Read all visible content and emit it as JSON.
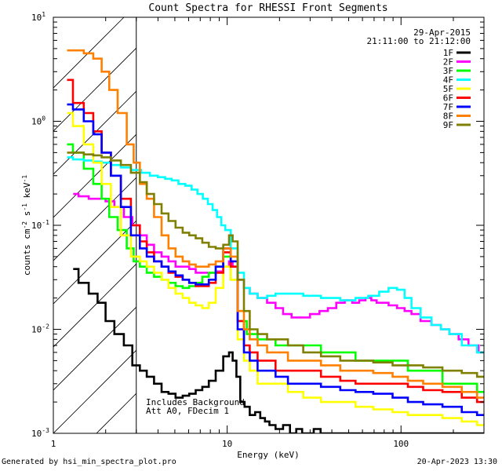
{
  "chart_data": {
    "type": "line",
    "title": "Count Spectra for RHESSI Front Segments",
    "date": "29-Apr-2015",
    "time_range": "21:11:00 to 21:12:00",
    "xlabel": "Energy (keV)",
    "ylabel_parts": [
      "counts cm",
      "-2",
      " s",
      "-1",
      " keV",
      "-1"
    ],
    "xscale": "log",
    "yscale": "log",
    "xlim": [
      1,
      300
    ],
    "ylim": [
      0.001,
      10
    ],
    "x_ticks": [
      {
        "v": 1,
        "label": "1"
      },
      {
        "v": 10,
        "label": "10"
      },
      {
        "v": 100,
        "label": "100"
      }
    ],
    "y_ticks": [
      {
        "v": 0.001,
        "base": "10",
        "exp": "-3"
      },
      {
        "v": 0.01,
        "base": "10",
        "exp": "-2"
      },
      {
        "v": 0.1,
        "base": "10",
        "exp": "-1"
      },
      {
        "v": 1,
        "base": "10",
        "exp": "0"
      },
      {
        "v": 10,
        "base": "10",
        "exp": "1"
      }
    ],
    "hatched_region_keV": [
      1,
      3
    ],
    "annotations": [
      "Includes Background",
      "Att A0, FDecim 1"
    ],
    "legend_position": "top-right",
    "series": [
      {
        "name": "1F",
        "color": "#000000",
        "x": [
          1.3,
          1.5,
          1.7,
          1.9,
          2.1,
          2.4,
          2.7,
          3.0,
          3.3,
          3.6,
          4.0,
          4.4,
          4.8,
          5.3,
          5.8,
          6.3,
          6.9,
          7.5,
          8.2,
          9.0,
          10.0,
          10.5,
          11.0,
          11.6,
          12.2,
          13,
          14,
          15,
          16,
          17,
          18,
          20,
          22,
          24,
          26,
          28,
          30,
          33,
          36,
          40,
          45,
          50,
          55,
          60,
          70,
          80,
          90,
          100,
          120,
          140,
          160,
          180,
          200,
          230,
          260,
          300
        ],
        "y": [
          0.038,
          0.028,
          0.022,
          0.018,
          0.012,
          0.009,
          0.007,
          0.0045,
          0.004,
          0.0035,
          0.003,
          0.0025,
          0.0024,
          0.0022,
          0.0023,
          0.0024,
          0.0026,
          0.0028,
          0.0032,
          0.004,
          0.0055,
          0.006,
          0.005,
          0.0035,
          0.002,
          0.0018,
          0.0015,
          0.0016,
          0.0014,
          0.0013,
          0.0012,
          0.0011,
          0.0012,
          0.001,
          0.0011,
          0.001,
          0.001,
          0.0011,
          0.001,
          0.001,
          0.001,
          0.001,
          0.001,
          0.001,
          0.001,
          0.001,
          0.001,
          0.001,
          0.001,
          0.001,
          0.001,
          0.001,
          0.001,
          0.001,
          0.001,
          0.001
        ]
      },
      {
        "name": "2F",
        "color": "#ff00ff",
        "x": [
          1.3,
          1.5,
          1.7,
          1.9,
          2.1,
          2.4,
          2.7,
          3.0,
          3.3,
          3.6,
          4.0,
          4.4,
          4.8,
          5.3,
          5.8,
          6.3,
          6.9,
          7.5,
          8.2,
          9.0,
          10.0,
          10.5,
          11.0,
          12,
          13,
          14,
          16,
          18,
          20,
          22,
          25,
          28,
          32,
          36,
          40,
          45,
          50,
          55,
          60,
          65,
          70,
          75,
          80,
          90,
          100,
          110,
          120,
          140,
          160,
          180,
          200,
          230,
          260,
          300
        ],
        "y": [
          0.2,
          0.19,
          0.18,
          0.18,
          0.17,
          0.15,
          0.12,
          0.1,
          0.08,
          0.065,
          0.055,
          0.05,
          0.045,
          0.04,
          0.04,
          0.038,
          0.035,
          0.035,
          0.035,
          0.036,
          0.04,
          0.045,
          0.04,
          0.03,
          0.025,
          0.022,
          0.02,
          0.018,
          0.016,
          0.014,
          0.013,
          0.013,
          0.014,
          0.015,
          0.016,
          0.018,
          0.019,
          0.018,
          0.019,
          0.02,
          0.019,
          0.018,
          0.018,
          0.017,
          0.016,
          0.015,
          0.014,
          0.012,
          0.011,
          0.01,
          0.009,
          0.008,
          0.007,
          0.006
        ]
      },
      {
        "name": "3F",
        "color": "#00ff00",
        "x": [
          1.2,
          1.4,
          1.6,
          1.8,
          2.0,
          2.2,
          2.5,
          2.8,
          3.0,
          3.3,
          3.6,
          4.0,
          4.4,
          4.8,
          5.3,
          5.8,
          6.3,
          6.9,
          7.5,
          8.2,
          9.0,
          10.0,
          11,
          12,
          14,
          16,
          18,
          20,
          25,
          30,
          40,
          50,
          60,
          80,
          100,
          120,
          150,
          200,
          250,
          300
        ],
        "y": [
          0.6,
          0.5,
          0.35,
          0.25,
          0.18,
          0.12,
          0.09,
          0.06,
          0.045,
          0.04,
          0.035,
          0.032,
          0.03,
          0.028,
          0.026,
          0.025,
          0.026,
          0.028,
          0.032,
          0.035,
          0.04,
          0.05,
          0.03,
          0.012,
          0.009,
          0.008,
          0.008,
          0.007,
          0.007,
          0.007,
          0.006,
          0.006,
          0.005,
          0.005,
          0.005,
          0.004,
          0.004,
          0.003,
          0.003,
          0.0025
        ]
      },
      {
        "name": "4F",
        "color": "#00ffff",
        "x": [
          1.2,
          1.4,
          1.6,
          1.8,
          2.0,
          2.3,
          2.6,
          3.0,
          3.4,
          3.8,
          4.2,
          4.6,
          5.0,
          5.5,
          6.0,
          6.5,
          7.0,
          7.5,
          8.0,
          8.5,
          9.0,
          9.5,
          10,
          11,
          12,
          13,
          14,
          16,
          18,
          20,
          25,
          30,
          40,
          50,
          60,
          70,
          80,
          90,
          100,
          110,
          120,
          140,
          160,
          180,
          200,
          250,
          300
        ],
        "y": [
          0.45,
          0.43,
          0.42,
          0.41,
          0.4,
          0.38,
          0.36,
          0.34,
          0.32,
          0.3,
          0.29,
          0.28,
          0.27,
          0.25,
          0.24,
          0.22,
          0.2,
          0.18,
          0.16,
          0.14,
          0.12,
          0.1,
          0.09,
          0.06,
          0.035,
          0.025,
          0.022,
          0.02,
          0.021,
          0.022,
          0.022,
          0.021,
          0.02,
          0.019,
          0.02,
          0.021,
          0.023,
          0.025,
          0.024,
          0.02,
          0.016,
          0.013,
          0.011,
          0.01,
          0.009,
          0.007,
          0.006
        ]
      },
      {
        "name": "5F",
        "color": "#ffff00",
        "x": [
          1.2,
          1.4,
          1.6,
          1.8,
          2.0,
          2.3,
          2.6,
          3.0,
          3.3,
          3.6,
          4.0,
          4.4,
          4.8,
          5.3,
          5.8,
          6.3,
          6.9,
          7.5,
          8.2,
          9.0,
          10.0,
          11,
          12,
          13,
          14,
          16,
          18,
          20,
          25,
          30,
          40,
          50,
          60,
          80,
          100,
          120,
          150,
          200,
          250,
          300
        ],
        "y": [
          1.2,
          0.9,
          0.6,
          0.4,
          0.25,
          0.15,
          0.08,
          0.05,
          0.045,
          0.04,
          0.035,
          0.03,
          0.025,
          0.022,
          0.02,
          0.018,
          0.017,
          0.016,
          0.018,
          0.025,
          0.04,
          0.03,
          0.008,
          0.005,
          0.004,
          0.003,
          0.003,
          0.003,
          0.0025,
          0.0022,
          0.002,
          0.002,
          0.0018,
          0.0017,
          0.0016,
          0.0015,
          0.0015,
          0.0014,
          0.0013,
          0.0012
        ]
      },
      {
        "name": "6F",
        "color": "#ff0000",
        "x": [
          1.2,
          1.4,
          1.6,
          1.8,
          2.0,
          2.3,
          2.6,
          3.0,
          3.3,
          3.6,
          4.0,
          4.4,
          4.8,
          5.3,
          5.8,
          6.3,
          6.9,
          7.5,
          8.2,
          9.0,
          10.0,
          11,
          12,
          13,
          14,
          16,
          18,
          20,
          25,
          30,
          40,
          50,
          60,
          80,
          100,
          120,
          150,
          200,
          250,
          300
        ],
        "y": [
          2.5,
          1.5,
          1.2,
          0.8,
          0.5,
          0.3,
          0.18,
          0.1,
          0.07,
          0.055,
          0.045,
          0.04,
          0.035,
          0.032,
          0.03,
          0.028,
          0.026,
          0.026,
          0.028,
          0.035,
          0.055,
          0.04,
          0.012,
          0.007,
          0.006,
          0.005,
          0.005,
          0.004,
          0.004,
          0.004,
          0.0035,
          0.0032,
          0.003,
          0.003,
          0.003,
          0.0028,
          0.0026,
          0.0025,
          0.0022,
          0.002
        ]
      },
      {
        "name": "7F",
        "color": "#0000ff",
        "x": [
          1.2,
          1.4,
          1.6,
          1.8,
          2.0,
          2.3,
          2.6,
          3.0,
          3.3,
          3.6,
          4.0,
          4.4,
          4.8,
          5.3,
          5.8,
          6.3,
          6.9,
          7.5,
          8.2,
          9.0,
          10.0,
          11,
          12,
          13,
          14,
          16,
          18,
          20,
          25,
          30,
          40,
          50,
          60,
          80,
          100,
          120,
          150,
          200,
          250,
          300
        ],
        "y": [
          1.45,
          1.3,
          1.0,
          0.75,
          0.5,
          0.3,
          0.15,
          0.08,
          0.06,
          0.05,
          0.045,
          0.04,
          0.036,
          0.033,
          0.03,
          0.028,
          0.027,
          0.027,
          0.03,
          0.04,
          0.06,
          0.045,
          0.01,
          0.006,
          0.005,
          0.004,
          0.004,
          0.0035,
          0.003,
          0.003,
          0.0028,
          0.0026,
          0.0025,
          0.0024,
          0.0022,
          0.002,
          0.0019,
          0.0018,
          0.0016,
          0.0015
        ]
      },
      {
        "name": "8F",
        "color": "#ff8000",
        "x": [
          1.2,
          1.4,
          1.6,
          1.8,
          2.0,
          2.2,
          2.5,
          2.8,
          3.0,
          3.3,
          3.6,
          4.0,
          4.4,
          4.8,
          5.3,
          5.8,
          6.3,
          6.9,
          7.5,
          8.2,
          9.0,
          10.0,
          11,
          12,
          13,
          14,
          16,
          18,
          20,
          25,
          30,
          40,
          50,
          60,
          80,
          100,
          120,
          150,
          200,
          250,
          300
        ],
        "y": [
          4.8,
          4.8,
          4.5,
          4.0,
          3.0,
          2.0,
          1.2,
          0.6,
          0.4,
          0.25,
          0.18,
          0.12,
          0.08,
          0.06,
          0.05,
          0.045,
          0.042,
          0.04,
          0.04,
          0.042,
          0.045,
          0.06,
          0.05,
          0.015,
          0.01,
          0.008,
          0.007,
          0.006,
          0.006,
          0.005,
          0.005,
          0.0045,
          0.004,
          0.004,
          0.0038,
          0.0035,
          0.0032,
          0.003,
          0.0028,
          0.0025,
          0.0022
        ]
      },
      {
        "name": "9F",
        "color": "#808000",
        "x": [
          1.2,
          1.4,
          1.6,
          1.8,
          2.0,
          2.3,
          2.6,
          3.0,
          3.3,
          3.6,
          4.0,
          4.4,
          4.8,
          5.3,
          5.8,
          6.3,
          6.9,
          7.5,
          8.2,
          9.0,
          10.0,
          10.5,
          11,
          12,
          13,
          14,
          16,
          18,
          20,
          25,
          30,
          40,
          50,
          60,
          80,
          100,
          120,
          150,
          200,
          250,
          300
        ],
        "y": [
          0.5,
          0.5,
          0.48,
          0.47,
          0.45,
          0.42,
          0.38,
          0.32,
          0.26,
          0.2,
          0.16,
          0.13,
          0.11,
          0.095,
          0.085,
          0.08,
          0.075,
          0.068,
          0.062,
          0.06,
          0.065,
          0.08,
          0.07,
          0.03,
          0.015,
          0.01,
          0.009,
          0.008,
          0.008,
          0.007,
          0.006,
          0.0055,
          0.005,
          0.005,
          0.0048,
          0.0045,
          0.0045,
          0.0043,
          0.004,
          0.0038,
          0.0035
        ]
      }
    ]
  },
  "footer": {
    "left": "Generated by hsi_min_spectra_plot.pro",
    "right": "20-Apr-2023 13:30"
  }
}
